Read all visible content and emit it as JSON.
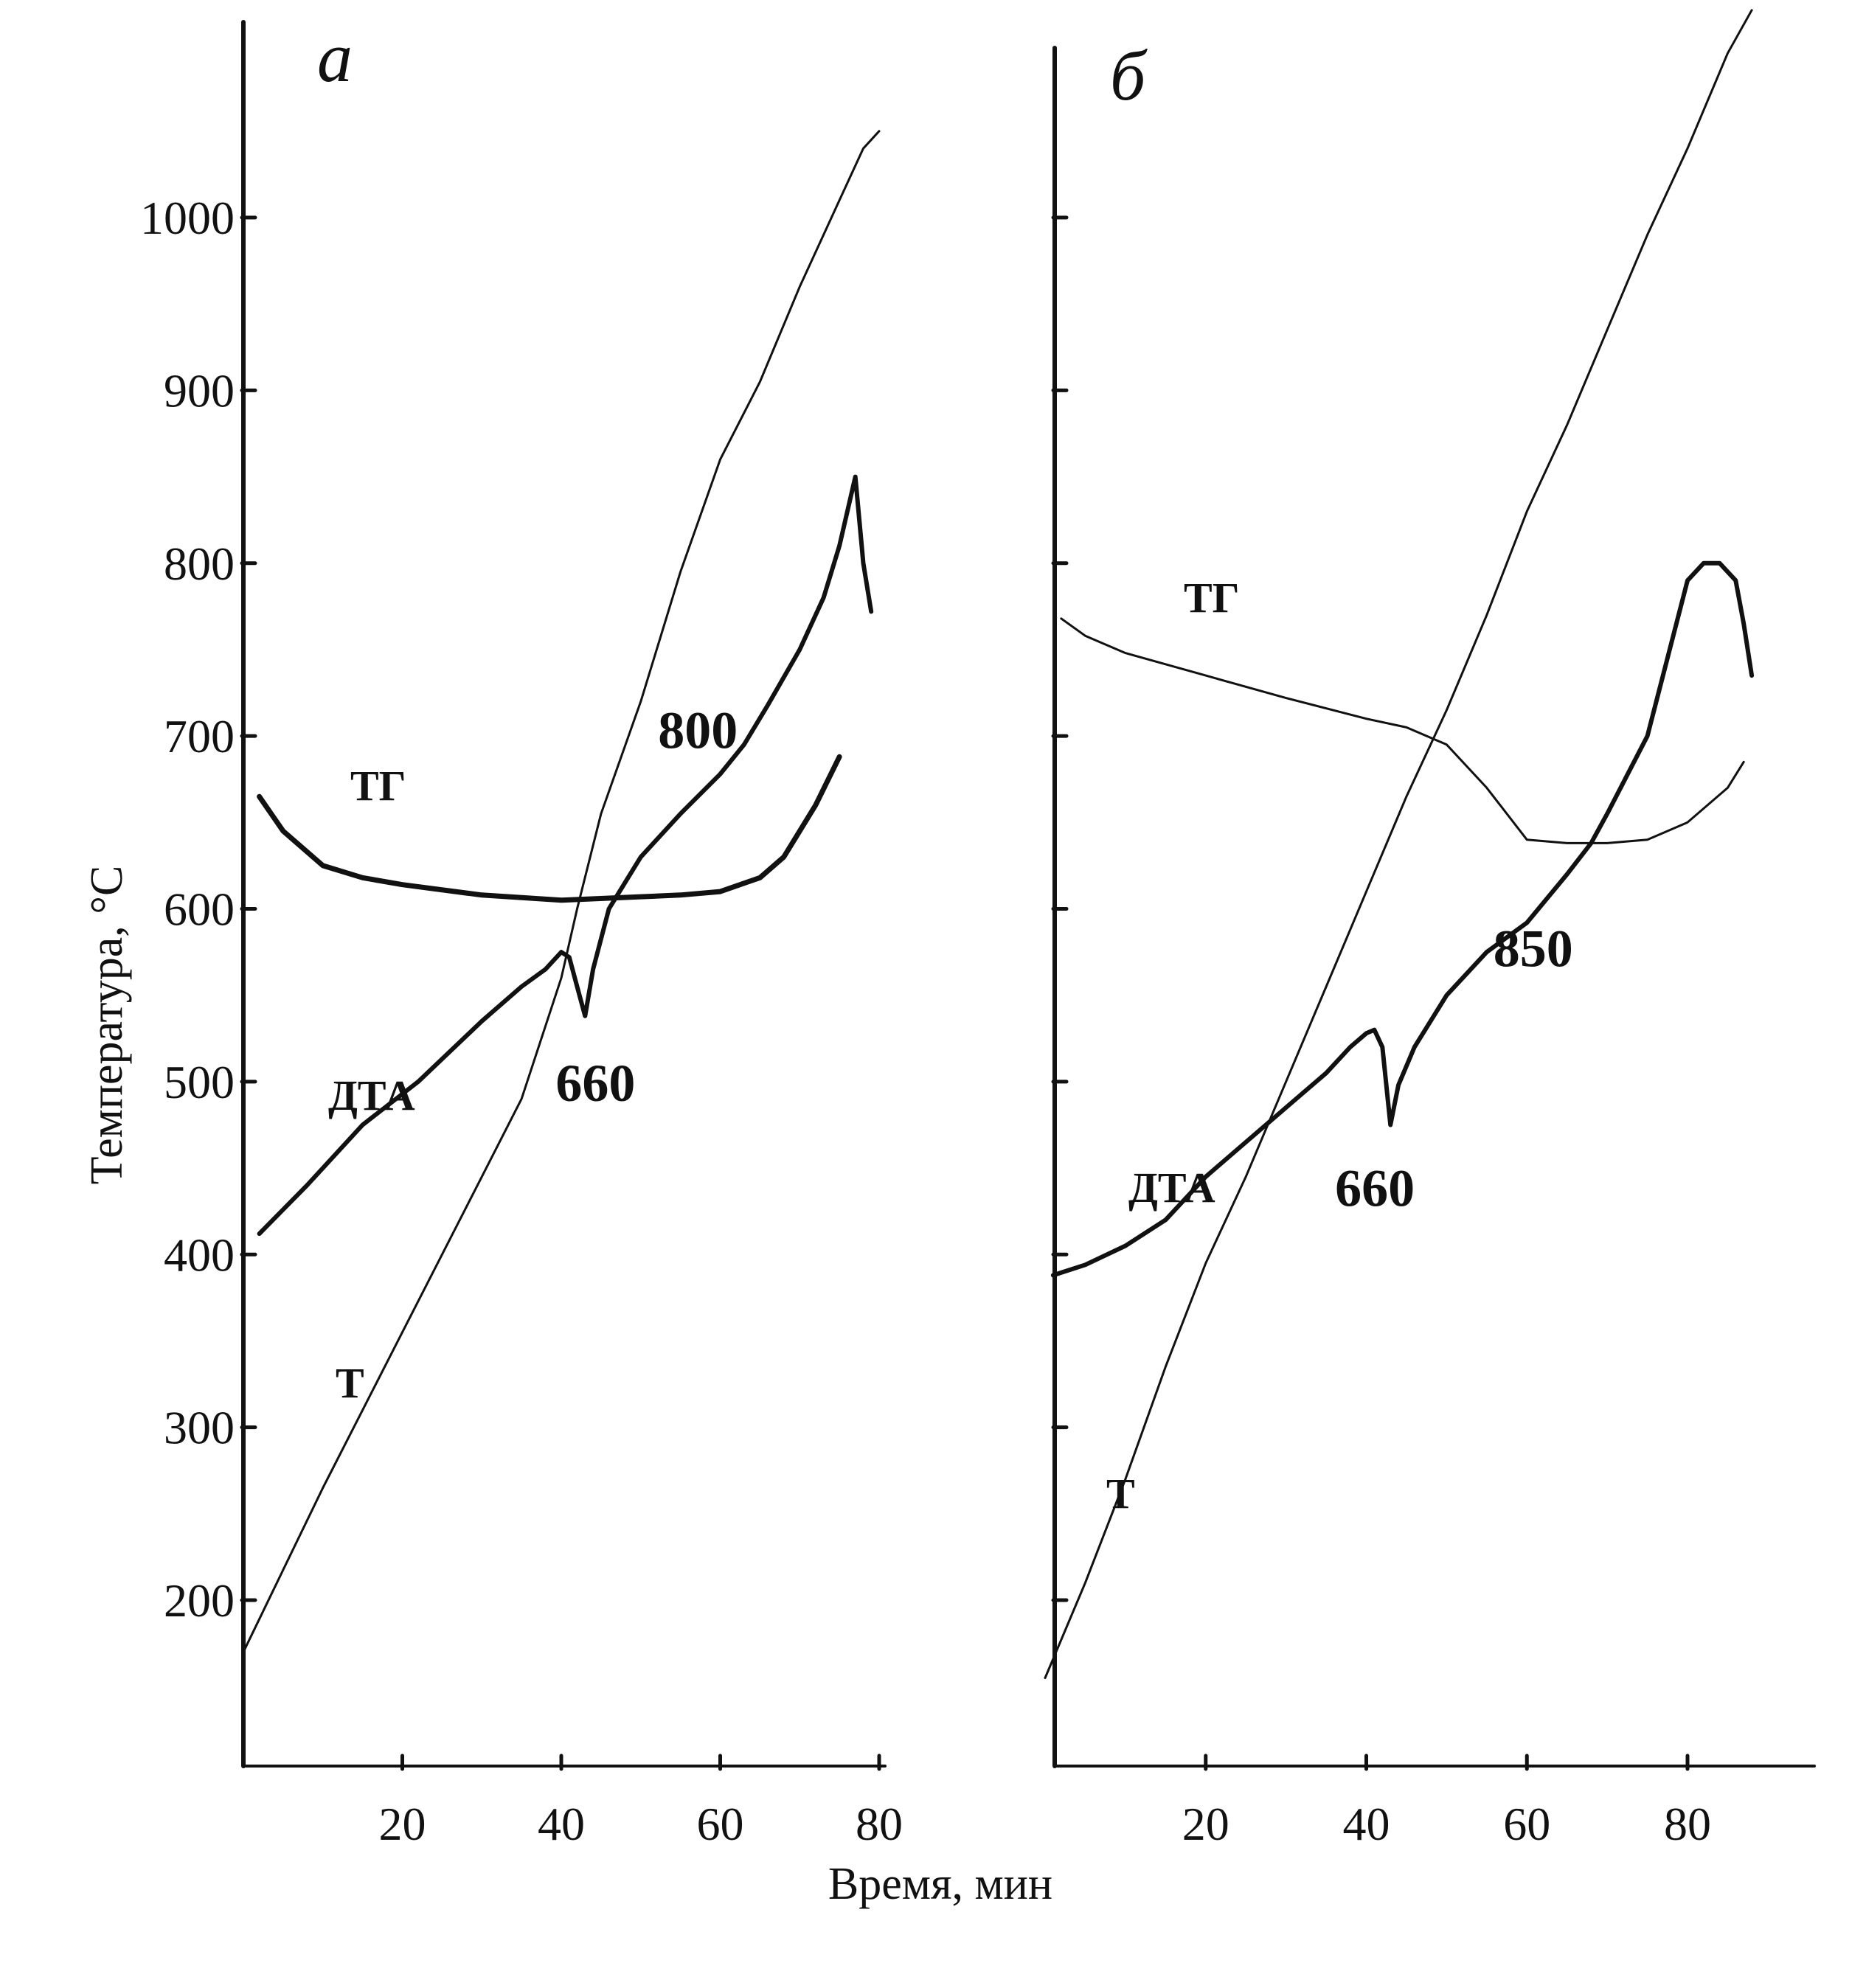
{
  "figure": {
    "ylabel": "Температура, °С",
    "xlabel": "Время, мин",
    "yticks": [
      "200",
      "300",
      "400",
      "500",
      "600",
      "700",
      "800",
      "900",
      "1000"
    ]
  },
  "chart_data": [
    {
      "panel": "а",
      "type": "line",
      "xticks": [
        20,
        40,
        60,
        80
      ],
      "yticks": [
        200,
        300,
        400,
        500,
        600,
        700,
        800,
        900,
        1000
      ],
      "xlim": [
        0,
        82
      ],
      "ylim": [
        105,
        1100
      ],
      "series": [
        {
          "name": "Т",
          "x": [
            0,
            10,
            20,
            30,
            35,
            40,
            42,
            45,
            50,
            55,
            60,
            65,
            70,
            75,
            78,
            80
          ],
          "y": [
            170,
            265,
            355,
            445,
            490,
            560,
            600,
            655,
            720,
            795,
            860,
            905,
            960,
            1010,
            1040,
            1050
          ]
        },
        {
          "name": "ТГ",
          "x": [
            2,
            5,
            10,
            15,
            20,
            30,
            40,
            50,
            55,
            60,
            65,
            68,
            72,
            75
          ],
          "y": [
            665,
            645,
            625,
            618,
            614,
            608,
            605,
            607,
            608,
            610,
            618,
            630,
            660,
            688
          ]
        },
        {
          "name": "ДТА",
          "x": [
            2,
            8,
            15,
            22,
            30,
            35,
            38,
            40,
            41,
            42,
            43,
            44,
            46,
            50,
            55,
            60,
            63,
            66,
            70,
            73,
            75,
            77,
            78,
            79
          ],
          "y": [
            412,
            440,
            475,
            500,
            535,
            555,
            565,
            575,
            572,
            555,
            538,
            565,
            600,
            630,
            655,
            678,
            695,
            718,
            750,
            780,
            810,
            850,
            800,
            772
          ]
        }
      ],
      "annotations": [
        {
          "text": "660",
          "x": 43,
          "y": 540
        },
        {
          "text": "800",
          "x": 61,
          "y": 678
        }
      ]
    },
    {
      "panel": "б",
      "type": "line",
      "xticks": [
        20,
        40,
        60,
        80
      ],
      "yticks": [
        200,
        300,
        400,
        500,
        600,
        700,
        800,
        900,
        1000
      ],
      "xlim": [
        0,
        98
      ],
      "ylim": [
        105,
        1100
      ],
      "series": [
        {
          "name": "Т",
          "x": [
            0,
            5,
            10,
            15,
            20,
            25,
            30,
            35,
            40,
            45,
            50,
            55,
            60,
            65,
            70,
            75,
            80,
            85,
            88
          ],
          "y": [
            155,
            210,
            270,
            335,
            395,
            445,
            500,
            555,
            610,
            665,
            715,
            770,
            830,
            880,
            935,
            990,
            1040,
            1095,
            1120
          ]
        },
        {
          "name": "ТГ",
          "x": [
            2,
            5,
            10,
            20,
            30,
            40,
            45,
            50,
            55,
            60,
            65,
            70,
            75,
            80,
            85,
            87
          ],
          "y": [
            768,
            758,
            748,
            735,
            722,
            710,
            705,
            695,
            670,
            640,
            638,
            638,
            640,
            650,
            670,
            685
          ]
        },
        {
          "name": "ДТА",
          "x": [
            1,
            5,
            10,
            15,
            20,
            25,
            30,
            35,
            38,
            40,
            41,
            42,
            43,
            44,
            46,
            50,
            55,
            60,
            65,
            68,
            70,
            75,
            80,
            82,
            84,
            86,
            87,
            88
          ],
          "y": [
            388,
            394,
            405,
            420,
            445,
            465,
            485,
            505,
            520,
            528,
            530,
            520,
            475,
            498,
            520,
            550,
            575,
            592,
            620,
            638,
            655,
            700,
            790,
            800,
            800,
            790,
            765,
            735
          ]
        }
      ],
      "annotations": [
        {
          "text": "660",
          "x": 43,
          "y": 475
        },
        {
          "text": "850",
          "x": 65,
          "y": 620
        }
      ]
    }
  ]
}
